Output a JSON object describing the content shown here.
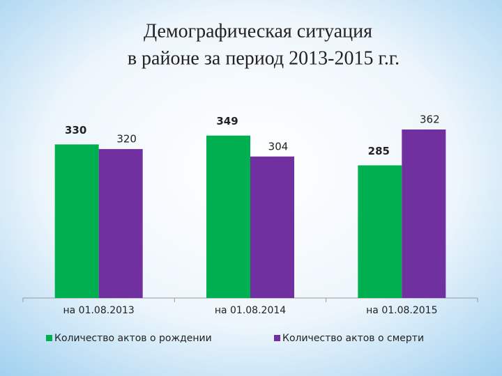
{
  "chart_data": {
    "type": "bar",
    "title": [
      "Демографическая ситуация",
      "в  районе за период 2013-2015 г.г."
    ],
    "categories": [
      "на 01.08.2013",
      "на 01.08.2014",
      "на 01.08.2015"
    ],
    "series": [
      {
        "name": "Количество актов о рождении",
        "color": "#00b050",
        "values": [
          330,
          349,
          285
        ]
      },
      {
        "name": "Количество актов о смерти",
        "color": "#7030a0",
        "values": [
          320,
          304,
          362
        ]
      }
    ],
    "legend": "bottom"
  }
}
